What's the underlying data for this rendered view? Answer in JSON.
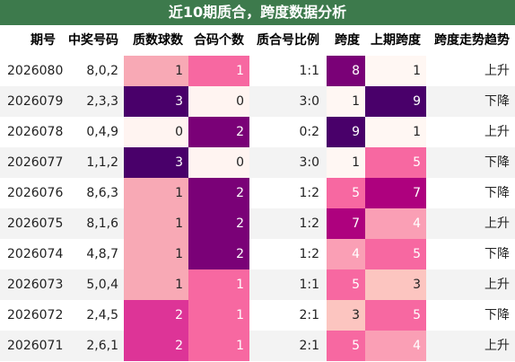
{
  "title": "近10期质合，跨度数据分析",
  "headers": [
    "期号",
    "中奖号码",
    "质数球数",
    "合码个数",
    "质合号比例",
    "跨度",
    "上期跨度",
    "跨度走势趋势"
  ],
  "rows": [
    {
      "period": "2026080",
      "numbers": "8,0,2",
      "prime": "1",
      "composite": "1",
      "ratio": "1:1",
      "span": "8",
      "prev_span": "1",
      "trend": "上升"
    },
    {
      "period": "2026079",
      "numbers": "2,3,3",
      "prime": "3",
      "composite": "0",
      "ratio": "3:0",
      "span": "1",
      "prev_span": "9",
      "trend": "下降"
    },
    {
      "period": "2026078",
      "numbers": "0,4,9",
      "prime": "0",
      "composite": "2",
      "ratio": "0:2",
      "span": "9",
      "prev_span": "1",
      "trend": "上升"
    },
    {
      "period": "2026077",
      "numbers": "1,1,2",
      "prime": "3",
      "composite": "0",
      "ratio": "3:0",
      "span": "1",
      "prev_span": "5",
      "trend": "下降"
    },
    {
      "period": "2026076",
      "numbers": "8,6,3",
      "prime": "1",
      "composite": "2",
      "ratio": "1:2",
      "span": "5",
      "prev_span": "7",
      "trend": "下降"
    },
    {
      "period": "2026075",
      "numbers": "8,1,6",
      "prime": "1",
      "composite": "2",
      "ratio": "1:2",
      "span": "7",
      "prev_span": "4",
      "trend": "上升"
    },
    {
      "period": "2026074",
      "numbers": "4,8,7",
      "prime": "1",
      "composite": "2",
      "ratio": "1:2",
      "span": "4",
      "prev_span": "5",
      "trend": "下降"
    },
    {
      "period": "2026073",
      "numbers": "5,0,4",
      "prime": "1",
      "composite": "1",
      "ratio": "1:1",
      "span": "5",
      "prev_span": "3",
      "trend": "上升"
    },
    {
      "period": "2026072",
      "numbers": "2,4,5",
      "prime": "2",
      "composite": "1",
      "ratio": "2:1",
      "span": "3",
      "prev_span": "5",
      "trend": "下降"
    },
    {
      "period": "2026071",
      "numbers": "2,6,1",
      "prime": "2",
      "composite": "1",
      "ratio": "2:1",
      "span": "5",
      "prev_span": "4",
      "trend": "上升"
    }
  ],
  "colors": {
    "title_bg": "#3d7a4c",
    "row_alt_bg": "#f3f3f3",
    "count_0": "#fff4f1",
    "count_1_prime": "#f8a9b5",
    "count_1_comp": "#f768a1",
    "count_2_prime": "#dd3497",
    "count_2_comp": "#7a0177",
    "count_3": "#49006a",
    "span_1": "#fff7f3",
    "span_3": "#fcc5c0",
    "span_4": "#fa9fb5",
    "span_5": "#f768a1",
    "span_7": "#ae017e",
    "span_8": "#7a0177",
    "span_9": "#49006a"
  }
}
